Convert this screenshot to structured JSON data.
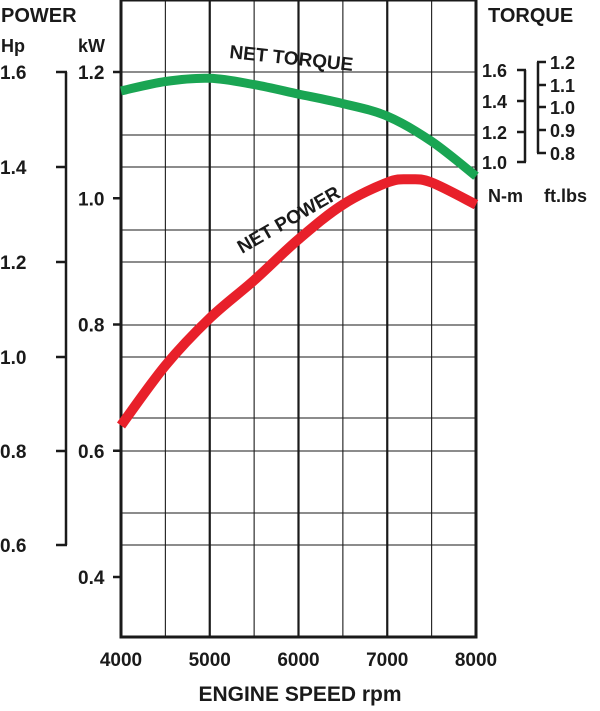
{
  "chart_data": {
    "type": "line",
    "title": "",
    "xlabel": "ENGINE SPEED rpm",
    "xlim": [
      4000,
      8000
    ],
    "x_ticks": [
      4000,
      5000,
      6000,
      7000,
      8000
    ],
    "left_axes": {
      "heading": "POWER",
      "hp": {
        "unit": "Hp",
        "ticks": [
          "1.6",
          "1.4",
          "1.2",
          "1.0",
          "0.8",
          "0.6"
        ]
      },
      "kw": {
        "unit": "kW",
        "ticks": [
          "1.2",
          "1.0",
          "0.8",
          "0.6",
          "0.4"
        ],
        "ylim": [
          0.28,
          1.32
        ]
      }
    },
    "right_axes": {
      "heading": "TORQUE",
      "nm": {
        "unit": "N-m",
        "ticks": [
          "1.6",
          "1.4",
          "1.2",
          "1.0"
        ]
      },
      "ftlbs": {
        "unit": "ft.lbs",
        "ticks": [
          "1.2",
          "1.1",
          "1.0",
          "0.9",
          "0.8"
        ]
      }
    },
    "grid": true,
    "series": [
      {
        "name": "NET TORQUE",
        "color": "#1aa553",
        "x": [
          4000,
          4500,
          5000,
          5500,
          6000,
          6500,
          7000,
          7500,
          8000
        ],
        "y": [
          1.17,
          1.185,
          1.19,
          1.18,
          1.165,
          1.15,
          1.13,
          1.09,
          1.035
        ]
      },
      {
        "name": "NET POWER",
        "color": "#e8202a",
        "x": [
          4000,
          4500,
          5000,
          5500,
          6000,
          6500,
          7000,
          7250,
          7500,
          8000
        ],
        "y": [
          0.64,
          0.735,
          0.81,
          0.87,
          0.935,
          0.99,
          1.025,
          1.03,
          1.025,
          0.99
        ]
      }
    ]
  }
}
